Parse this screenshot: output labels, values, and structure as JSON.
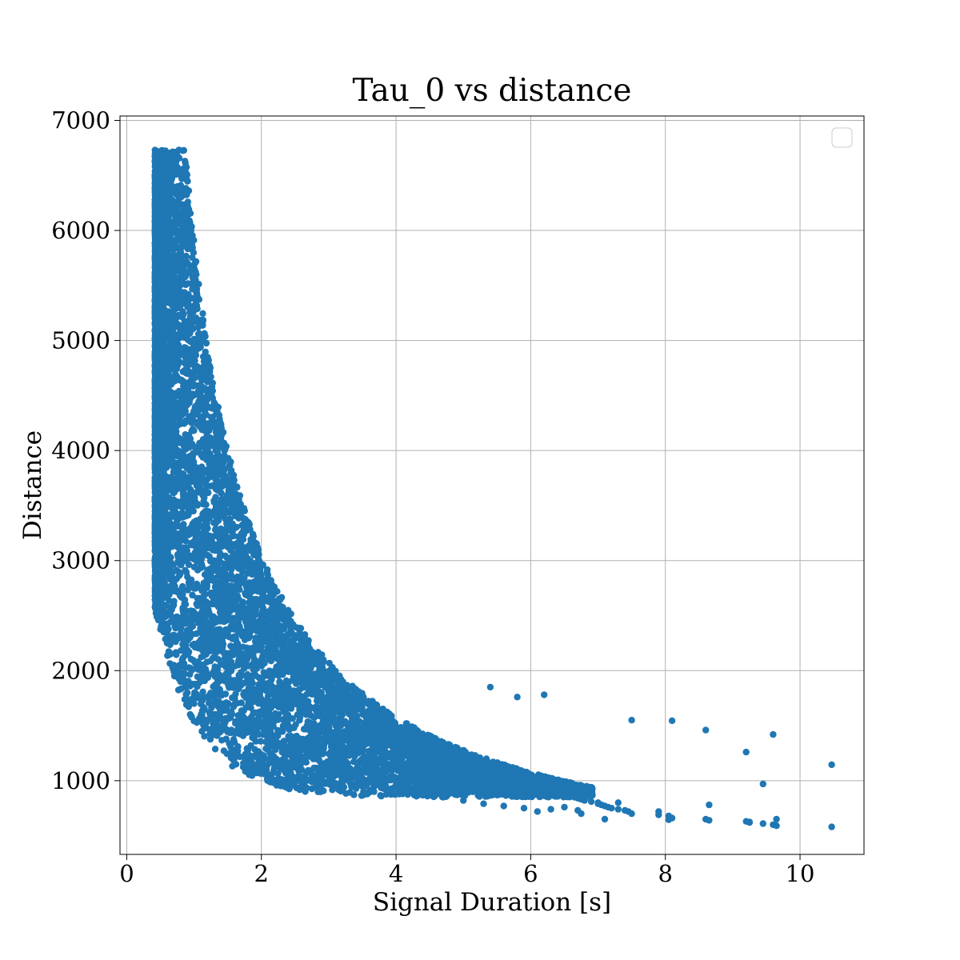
{
  "chart_data": {
    "type": "scatter",
    "title": "Tau_0 vs distance",
    "xlabel": "Signal Duration [s]",
    "ylabel": "Distance",
    "xlim": [
      -0.1,
      10.95
    ],
    "ylim": [
      330,
      7040
    ],
    "xticks": [
      0,
      2,
      4,
      6,
      8,
      10
    ],
    "yticks": [
      1000,
      2000,
      3000,
      4000,
      5000,
      6000,
      7000
    ],
    "grid": true,
    "legend": {
      "placement": "upper-right",
      "entries": []
    },
    "marker_color": "#1f77b4",
    "series": [
      {
        "name": "",
        "x": [
          0.42,
          0.43,
          0.44,
          0.45,
          0.46,
          0.48,
          0.5,
          0.52,
          0.55,
          0.58,
          0.6,
          0.62,
          0.65,
          0.68,
          0.72,
          0.75,
          0.78,
          0.82,
          0.85,
          0.88,
          0.9,
          0.95,
          1.0,
          1.05,
          1.1,
          1.15,
          1.2,
          1.3,
          1.4,
          1.5,
          1.6,
          1.7,
          1.8,
          1.9,
          2.0,
          2.05,
          2.1,
          2.15,
          2.2,
          2.25,
          2.3,
          2.35,
          2.4,
          2.45,
          2.5,
          2.55,
          2.6,
          2.65,
          2.7,
          2.75,
          2.8,
          2.85,
          2.9,
          2.95,
          3.0,
          3.05,
          3.1,
          3.15,
          3.2,
          3.25,
          3.3,
          3.35,
          3.4,
          3.45,
          3.5,
          3.55,
          3.6,
          3.65,
          3.7,
          3.75,
          3.8,
          3.85,
          3.9,
          3.95,
          4.0,
          4.05,
          4.1,
          4.15,
          4.2,
          4.25,
          4.3,
          4.35,
          4.4,
          4.45,
          4.5,
          4.55,
          4.6,
          4.65,
          4.7,
          4.75,
          4.8,
          4.85,
          4.9,
          4.95,
          5.0,
          5.05,
          5.1,
          5.15,
          5.2,
          5.25,
          5.3,
          5.35,
          5.4,
          5.45,
          5.5,
          5.55,
          5.6,
          5.65,
          5.7,
          5.75,
          5.8,
          5.85,
          5.9,
          6.0,
          6.05,
          6.1,
          6.15,
          6.2,
          6.25,
          6.3,
          6.35,
          6.4,
          6.45,
          6.5,
          6.6,
          6.65,
          6.7,
          6.75,
          6.8,
          6.9,
          7.0,
          7.05,
          7.1,
          7.15,
          7.2,
          7.3,
          7.4,
          7.45,
          7.5,
          7.9,
          8.05,
          8.1,
          8.6,
          8.65,
          9.2,
          9.25,
          9.45,
          9.6,
          9.65,
          10.47
        ],
        "y": [
          6730,
          6550,
          6300,
          6100,
          5900,
          5600,
          5400,
          5200,
          5000,
          4800,
          4650,
          4500,
          4350,
          4200,
          4050,
          3950,
          3850,
          3750,
          3650,
          3580,
          3520,
          3450,
          3350,
          3260,
          3180,
          3100,
          3050,
          2920,
          2820,
          2720,
          2630,
          2550,
          2470,
          2390,
          2310,
          2280,
          2250,
          2220,
          2190,
          2160,
          2130,
          2110,
          2090,
          2060,
          2040,
          2010,
          1990,
          1970,
          1950,
          1930,
          1910,
          1890,
          1870,
          1850,
          1830,
          1810,
          1790,
          1770,
          1750,
          1730,
          1710,
          1690,
          1670,
          1650,
          1630,
          1610,
          1590,
          1570,
          1560,
          1540,
          1520,
          1500,
          1480,
          1470,
          1450,
          1430,
          1420,
          1400,
          1380,
          1370,
          1350,
          1340,
          1320,
          1310,
          1290,
          1280,
          1260,
          1250,
          1240,
          1220,
          1210,
          1200,
          1180,
          1170,
          1160,
          1150,
          1140,
          1120,
          1110,
          1100,
          1090,
          1080,
          1070,
          1060,
          1050,
          1040,
          1030,
          1020,
          1010,
          1000,
          990,
          980,
          970,
          960,
          950,
          940,
          930,
          920,
          910,
          900,
          895,
          890,
          880,
          870,
          860,
          850,
          840,
          830,
          820,
          810,
          800,
          780,
          770,
          760,
          750,
          740,
          730,
          720,
          700,
          690,
          680,
          660,
          650,
          640,
          630,
          620,
          610,
          600,
          590,
          580
        ],
        "x_extra": [
          0.45,
          0.5,
          0.55,
          0.6,
          0.65,
          0.7,
          0.8,
          0.9,
          1.0,
          1.2,
          1.4,
          1.6,
          1.8,
          2.0,
          2.3,
          2.6,
          2.9,
          3.2,
          3.5,
          3.8,
          4.1,
          4.4,
          4.7,
          5.0,
          5.3,
          5.6,
          5.9,
          6.1,
          6.3,
          6.5,
          6.7,
          7.0,
          7.5,
          8.1,
          8.6,
          9.6,
          10.47,
          9.2,
          9.45,
          8.65,
          7.9,
          8.05,
          9.25,
          9.65,
          7.1,
          7.3,
          6.75,
          6.2,
          5.8,
          5.4
        ],
        "y_extra": [
          2600,
          2500,
          2350,
          2250,
          2150,
          2050,
          1900,
          1800,
          1700,
          1550,
          1450,
          1350,
          1280,
          1200,
          1150,
          1100,
          1050,
          1000,
          980,
          950,
          920,
          880,
          850,
          820,
          790,
          770,
          750,
          720,
          740,
          760,
          730,
          790,
          1550,
          1545,
          1460,
          1420,
          1145,
          1260,
          970,
          780,
          720,
          645,
          625,
          650,
          650,
          800,
          700,
          1780,
          1760,
          1850
        ]
      }
    ]
  }
}
